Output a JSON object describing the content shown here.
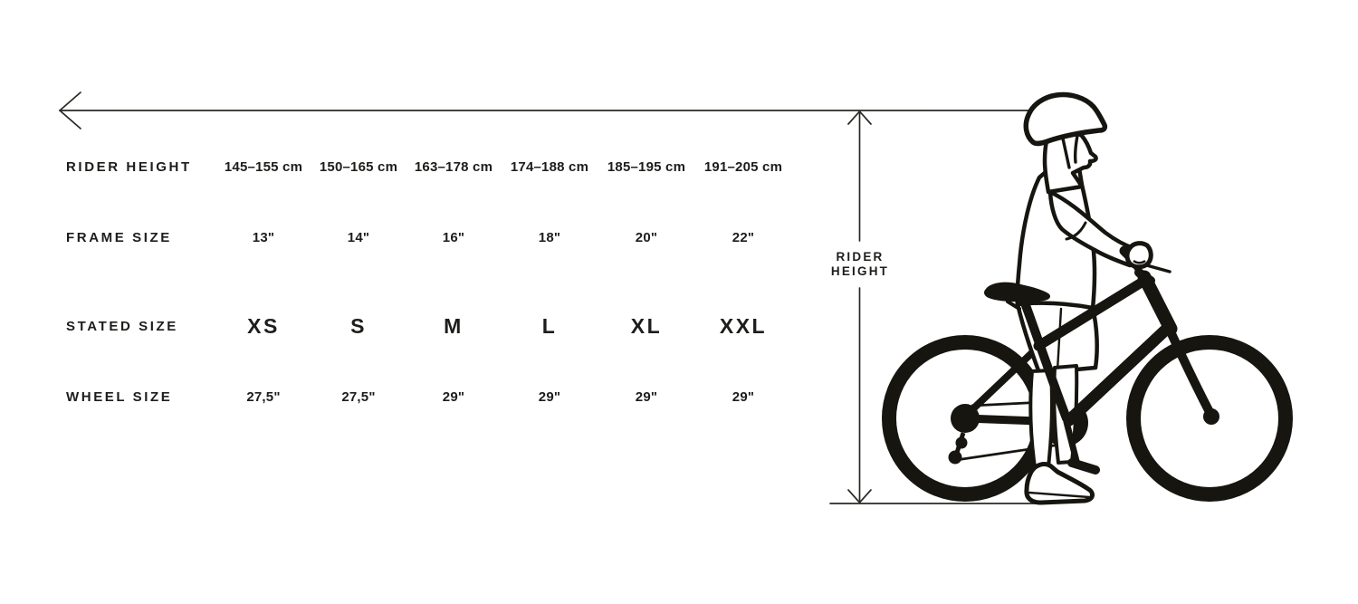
{
  "measure": {
    "rider_height_label_lines": [
      "RIDER",
      "HEIGHT"
    ]
  },
  "size_table": {
    "rows": [
      {
        "id": "rider-height",
        "label": "RIDER HEIGHT",
        "values": [
          "145–155 cm",
          "150–165 cm",
          "163–178 cm",
          "174–188 cm",
          "185–195 cm",
          "191–205 cm"
        ]
      },
      {
        "id": "frame-size",
        "label": "FRAME SIZE",
        "values": [
          "13\"",
          "14\"",
          "16\"",
          "18\"",
          "20\"",
          "22\""
        ]
      },
      {
        "id": "stated-size",
        "label": "STATED SIZE",
        "values": [
          "XS",
          "S",
          "M",
          "L",
          "XL",
          "XXL"
        ]
      },
      {
        "id": "wheel-size",
        "label": "WHEEL SIZE",
        "values": [
          "27,5\"",
          "27,5\"",
          "29\"",
          "29\"",
          "29\"",
          "29\""
        ]
      }
    ]
  },
  "colors": {
    "text": "#1d1d1b",
    "ink": "#17150f",
    "background": "#ffffff"
  }
}
